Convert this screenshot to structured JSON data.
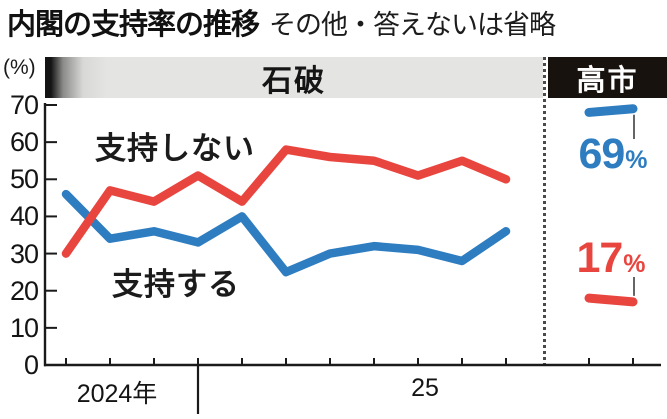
{
  "title": "内閣の支持率の推移",
  "subtitle": "その他・答えないは省略",
  "periods": {
    "ishiba": "石破",
    "takaichi": "高市"
  },
  "y_axis": {
    "unit_label": "(%)",
    "ticks": [
      70,
      60,
      50,
      40,
      30,
      20,
      10,
      0
    ]
  },
  "x_axis": {
    "labels": [
      "2024年",
      "25"
    ]
  },
  "series_labels": {
    "disapprove": "支持しない",
    "approve": "支持する"
  },
  "annotations": {
    "takaichi_approve_value": "69",
    "takaichi_disapprove_value": "17",
    "percent_sign": "%"
  },
  "colors": {
    "approve": "#2e7dc0",
    "disapprove": "#e9453f",
    "axis": "#1a1a1a",
    "leader": "#4a4a4a"
  },
  "chart_data": {
    "type": "line",
    "title": "内閣の支持率の推移",
    "note": "その他・答えないは省略",
    "ylabel": "(%)",
    "ylim": [
      0,
      70
    ],
    "yticks": [
      0,
      10,
      20,
      30,
      40,
      50,
      60,
      70
    ],
    "grid": false,
    "sections": [
      {
        "label": "石破",
        "x_labels": [
          "2024年",
          "25"
        ],
        "year_divider_index": 3,
        "series": [
          {
            "name": "支持する",
            "key": "approve",
            "values": [
              46,
              34,
              36,
              33,
              40,
              25,
              30,
              32,
              31,
              28,
              36
            ]
          },
          {
            "name": "支持しない",
            "key": "disapprove",
            "values": [
              30,
              47,
              44,
              51,
              44,
              58,
              56,
              55,
              51,
              55,
              50
            ]
          }
        ]
      },
      {
        "label": "高市",
        "series": [
          {
            "name": "支持する",
            "key": "approve",
            "values": [
              68,
              69
            ],
            "end_label": "69%"
          },
          {
            "name": "支持しない",
            "key": "disapprove",
            "values": [
              18,
              17
            ],
            "end_label": "17%"
          }
        ]
      }
    ]
  }
}
